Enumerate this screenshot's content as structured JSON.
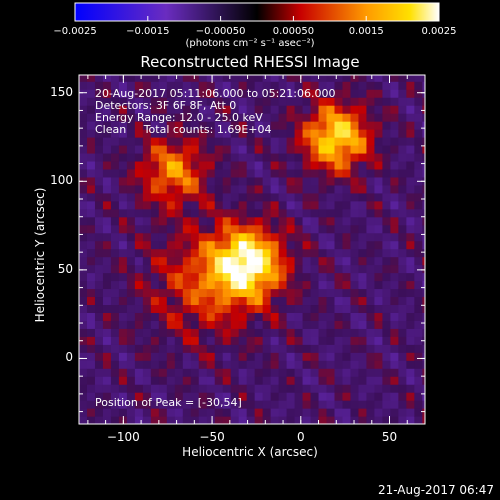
{
  "chart_data": {
    "type": "heatmap",
    "title": "Reconstructed RHESSI Image",
    "xlabel": "Heliocentric X (arcsec)",
    "ylabel": "Heliocentric Y (arcsec)",
    "xlim": [
      -125,
      70
    ],
    "ylim": [
      -37,
      160
    ],
    "x_ticks": [
      -100,
      -50,
      0,
      50
    ],
    "x_tick_labels": [
      "−100",
      "−50",
      "0",
      "50"
    ],
    "y_ticks": [
      0,
      50,
      100,
      150
    ],
    "y_tick_labels": [
      "0",
      "50",
      "100",
      "150"
    ],
    "colorbar": {
      "range": [
        -0.0025,
        0.0025
      ],
      "ticks": [
        -0.0025,
        -0.0015,
        -0.0005,
        0.0005,
        0.0015,
        0.0025
      ],
      "tick_labels": [
        "−0.0025",
        "−0.0015",
        "−0.00050",
        "0.00050",
        "0.0015",
        "0.0025"
      ],
      "units": "(photons cm⁻² s⁻¹ asec⁻²)",
      "colormap": "blue-purple-red-orange-yellow-white"
    },
    "sources": [
      {
        "x": -30,
        "y": 54,
        "peak": 0.0025,
        "sigma": 14
      },
      {
        "x": 20,
        "y": 125,
        "peak": 0.0022,
        "sigma": 13
      },
      {
        "x": -72,
        "y": 106,
        "peak": 0.0015,
        "sigma": 13
      },
      {
        "x": -55,
        "y": 42,
        "peak": 0.001,
        "sigma": 22
      }
    ],
    "header_lines": [
      "20-Aug-2017 05:11:06.000 to 05:21:06.000",
      "Detectors: 3F 6F 8F, Att 0",
      "Energy Range: 12.0 - 25.0 keV",
      "Clean     Total counts: 1.69E+04"
    ],
    "peak_annotation": "Position of Peak = [-30,54]",
    "background_color": "#000000",
    "axis_color": "#ffffff"
  },
  "footer_timestamp": "21-Aug-2017 06:47"
}
